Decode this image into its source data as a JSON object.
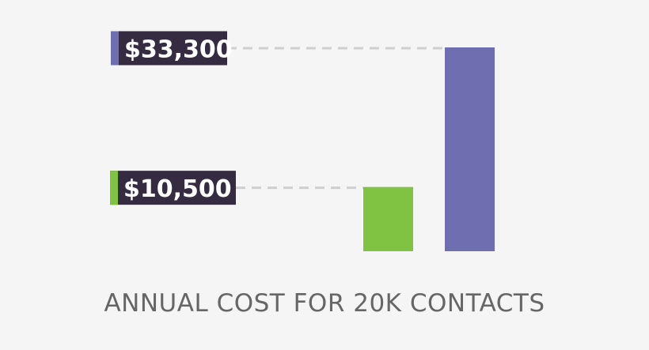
{
  "chart_data": {
    "type": "bar",
    "title": "ANNUAL COST FOR 20K CONTACTS",
    "categories": [
      "",
      ""
    ],
    "values": [
      10500,
      33300
    ],
    "data_labels": [
      "$10,500",
      "$33,300"
    ],
    "colors": [
      "#80c342",
      "#6f6eb0"
    ],
    "label_bg": "#352c42",
    "grid": false
  }
}
